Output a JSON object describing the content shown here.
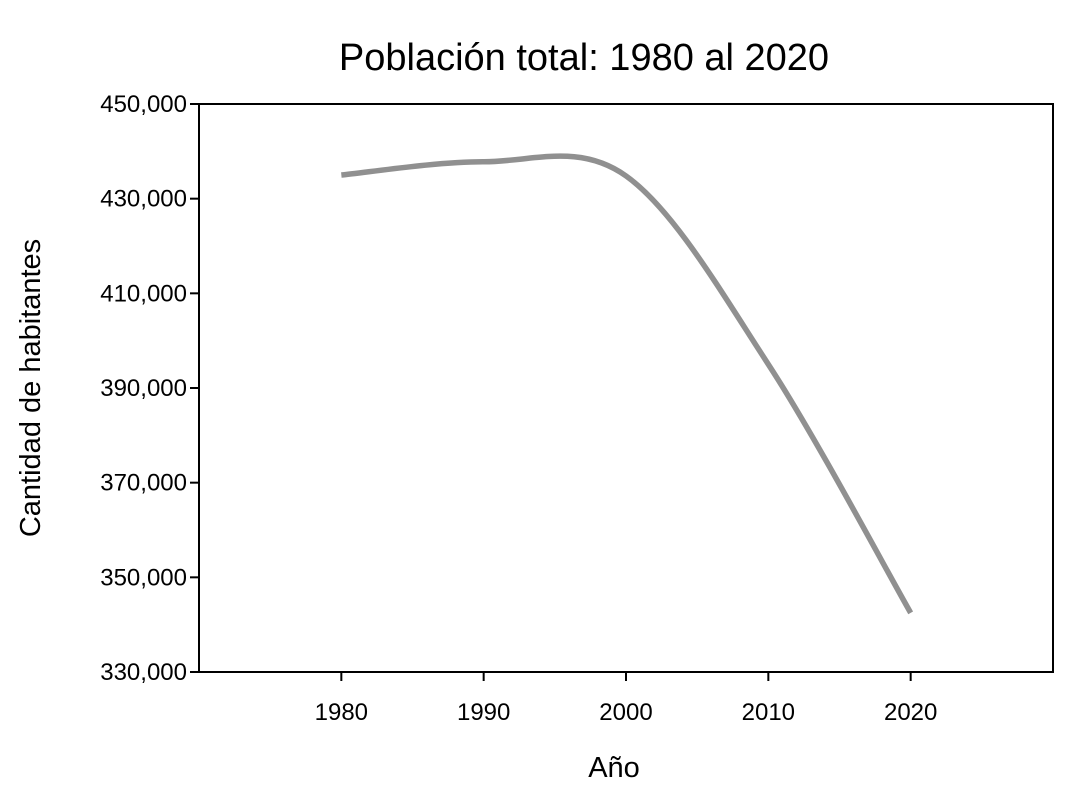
{
  "chart_data": {
    "type": "line",
    "title": "Población total: 1980 al 2020",
    "xlabel": "Año",
    "ylabel": "Cantidad de habitantes",
    "x_ticks": [
      "1980",
      "1990",
      "2000",
      "2010",
      "2020"
    ],
    "y_ticks": [
      "330,000",
      "350,000",
      "370,000",
      "390,000",
      "410,000",
      "430,000",
      "450,000"
    ],
    "xlim": [
      1970,
      2030
    ],
    "ylim": [
      330000,
      450000
    ],
    "grid": false,
    "series": [
      {
        "name": "Población total",
        "color": "#909090",
        "x": [
          1980,
          1990,
          2000,
          2010,
          2020
        ],
        "values": [
          435000,
          437800,
          434800,
          395000,
          342500
        ]
      }
    ]
  }
}
